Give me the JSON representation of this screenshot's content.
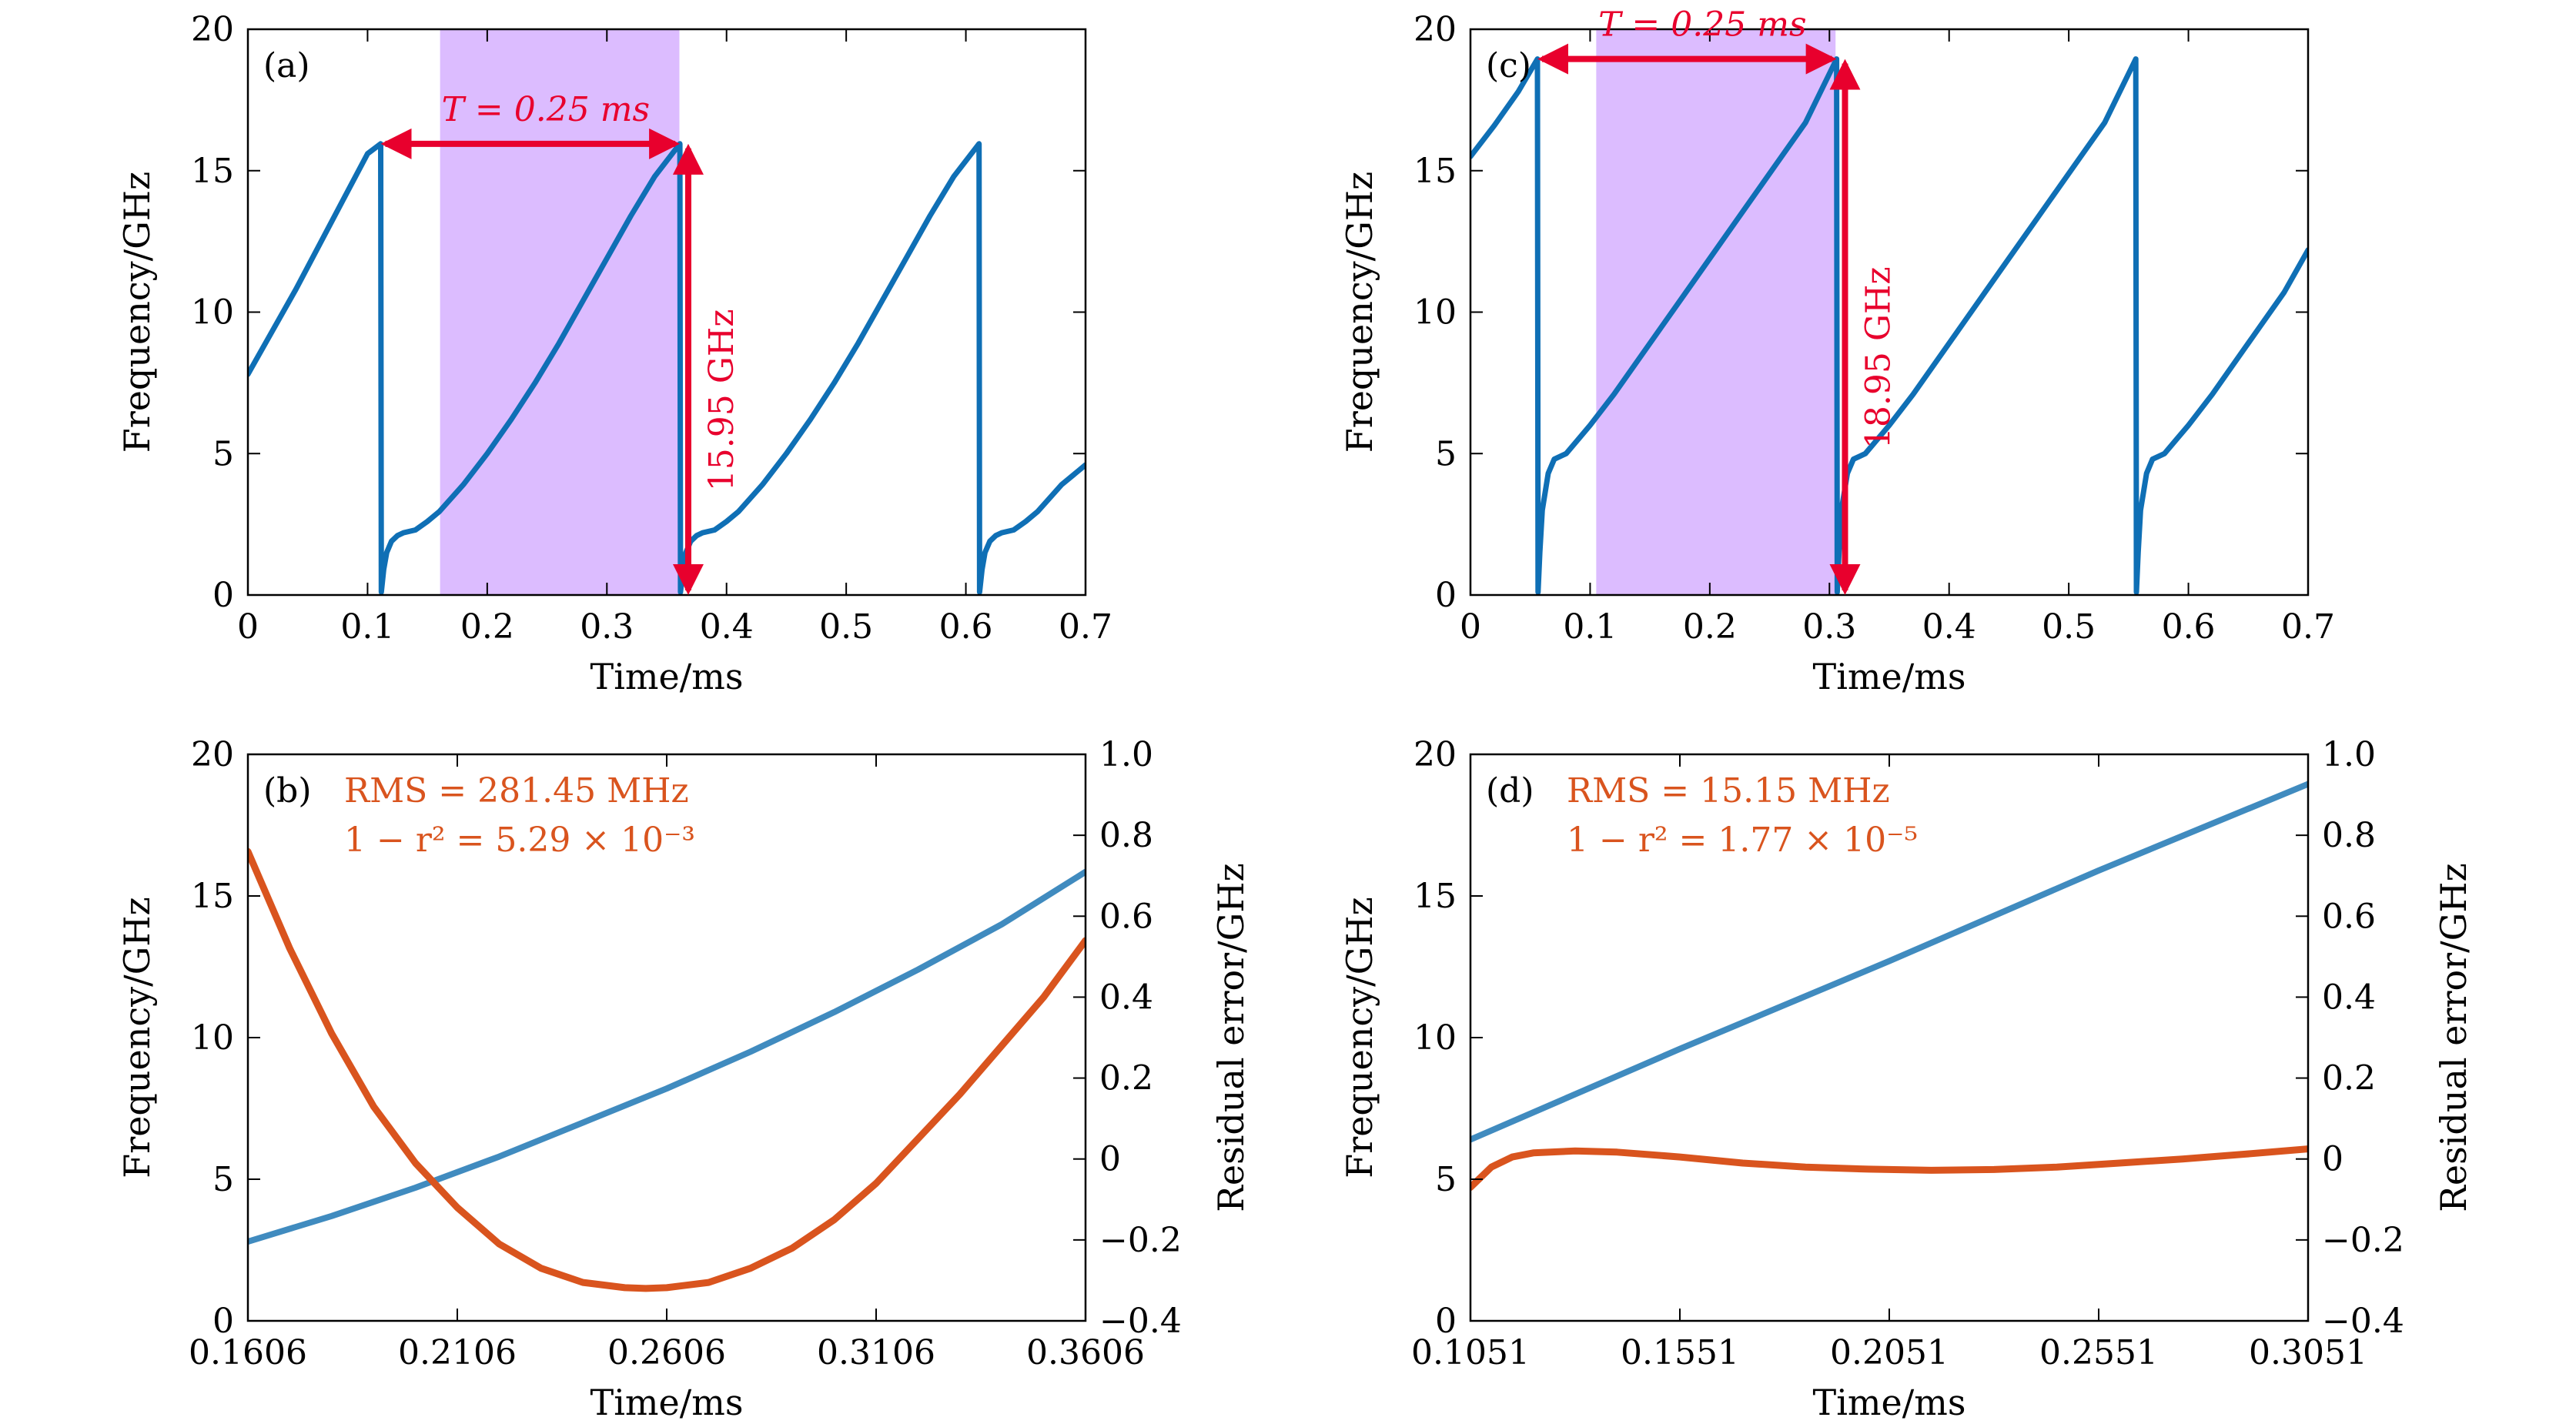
{
  "colors": {
    "frequency": "#1f77b4",
    "frequency_curve": "#0f6fb5",
    "residual": "#d9541e",
    "annotation": "#e8002d",
    "highlight": "#dcbcff"
  },
  "chart_data": [
    {
      "id": "a",
      "type": "line",
      "panel_label": "(a)",
      "xlabel": "Time/ms",
      "ylabel": "Frequency/GHz",
      "xlim": [
        0,
        0.7
      ],
      "ylim": [
        0,
        20
      ],
      "xticks": [
        0,
        0.1,
        0.2,
        0.3,
        0.4,
        0.5,
        0.6,
        0.7
      ],
      "xtick_labels": [
        "0",
        "0.1",
        "0.2",
        "0.3",
        "0.4",
        "0.5",
        "0.6",
        "0.7"
      ],
      "yticks": [
        0,
        5,
        10,
        15,
        20
      ],
      "ytick_labels": [
        "0",
        "5",
        "10",
        "15",
        "20"
      ],
      "series": [
        {
          "name": "Frequency",
          "x": [
            0,
            0.02,
            0.04,
            0.06,
            0.08,
            0.1,
            0.111,
            0.1115,
            0.1135,
            0.116,
            0.12,
            0.125,
            0.13,
            0.14,
            0.15,
            0.16,
            0.18,
            0.2,
            0.22,
            0.24,
            0.26,
            0.28,
            0.3,
            0.32,
            0.34,
            0.361,
            0.3615,
            0.3635,
            0.366,
            0.37,
            0.375,
            0.38,
            0.39,
            0.4,
            0.41,
            0.43,
            0.45,
            0.47,
            0.49,
            0.51,
            0.53,
            0.55,
            0.57,
            0.59,
            0.611,
            0.6115,
            0.6135,
            0.616,
            0.62,
            0.625,
            0.63,
            0.64,
            0.65,
            0.66,
            0.68,
            0.7
          ],
          "y": [
            7.8,
            9.3,
            10.8,
            12.4,
            14.0,
            15.6,
            15.95,
            0.1,
            0.9,
            1.5,
            1.9,
            2.1,
            2.2,
            2.3,
            2.6,
            2.95,
            3.9,
            5.0,
            6.2,
            7.5,
            8.9,
            10.4,
            11.9,
            13.4,
            14.8,
            15.95,
            0.1,
            0.9,
            1.5,
            1.9,
            2.1,
            2.2,
            2.3,
            2.6,
            2.95,
            3.9,
            5.0,
            6.2,
            7.5,
            8.9,
            10.4,
            11.9,
            13.4,
            14.8,
            15.95,
            0.1,
            0.9,
            1.5,
            1.9,
            2.1,
            2.2,
            2.3,
            2.6,
            2.95,
            3.9,
            4.6
          ]
        }
      ],
      "highlight_x": [
        0.1606,
        0.3606
      ],
      "annotations": {
        "period": {
          "label": "T = 0.25 ms",
          "x0": 0.111,
          "x1": 0.361,
          "y": 15.95
        },
        "bandwidth": {
          "label": "15.95 GHz",
          "x": 0.368,
          "y0": 0,
          "y1": 15.95
        }
      }
    },
    {
      "id": "b",
      "type": "line",
      "panel_label": "(b)",
      "xlabel": "Time/ms",
      "ylabel": "Frequency/GHz",
      "ylabel_right": "Residual error/GHz",
      "xlim": [
        0.1606,
        0.3606
      ],
      "ylim": [
        0,
        20
      ],
      "ylim_right": [
        -0.4,
        1.0
      ],
      "xticks": [
        0.1606,
        0.2106,
        0.2606,
        0.3106,
        0.3606
      ],
      "xtick_labels": [
        "0.1606",
        "0.2106",
        "0.2606",
        "0.3106",
        "0.3606"
      ],
      "yticks": [
        0,
        5,
        10,
        15,
        20
      ],
      "ytick_labels": [
        "0",
        "5",
        "10",
        "15",
        "20"
      ],
      "yticks_right": [
        -0.4,
        -0.2,
        0,
        0.2,
        0.4,
        0.6,
        0.8,
        1.0
      ],
      "ytick_labels_right": [
        "−0.4",
        "−0.2",
        "0",
        "0.2",
        "0.4",
        "0.6",
        "0.8",
        "1.0"
      ],
      "stats": {
        "rms": "RMS = 281.45 MHz",
        "fit": "1 − r² = 5.29 × 10⁻³"
      },
      "series": [
        {
          "name": "Frequency",
          "axis": "left",
          "x": [
            0.1606,
            0.1806,
            0.2006,
            0.2206,
            0.2406,
            0.2606,
            0.2806,
            0.3006,
            0.3206,
            0.3406,
            0.3606
          ],
          "y": [
            2.8,
            3.7,
            4.7,
            5.8,
            7.0,
            8.2,
            9.5,
            10.9,
            12.4,
            14.0,
            15.85
          ]
        },
        {
          "name": "Residual error",
          "axis": "right",
          "x": [
            0.1606,
            0.1706,
            0.1806,
            0.1906,
            0.2006,
            0.2106,
            0.2206,
            0.2306,
            0.2406,
            0.2506,
            0.2556,
            0.2606,
            0.2706,
            0.2806,
            0.2906,
            0.3006,
            0.3106,
            0.3206,
            0.3306,
            0.3406,
            0.3506,
            0.3606
          ],
          "y": [
            0.76,
            0.52,
            0.31,
            0.13,
            -0.01,
            -0.12,
            -0.21,
            -0.27,
            -0.305,
            -0.318,
            -0.32,
            -0.318,
            -0.305,
            -0.27,
            -0.22,
            -0.15,
            -0.06,
            0.05,
            0.16,
            0.28,
            0.4,
            0.54
          ]
        }
      ]
    },
    {
      "id": "c",
      "type": "line",
      "panel_label": "(c)",
      "xlabel": "Time/ms",
      "ylabel": "Frequency/GHz",
      "xlim": [
        0,
        0.7
      ],
      "ylim": [
        0,
        20
      ],
      "xticks": [
        0,
        0.1,
        0.2,
        0.3,
        0.4,
        0.5,
        0.6,
        0.7
      ],
      "xtick_labels": [
        "0",
        "0.1",
        "0.2",
        "0.3",
        "0.4",
        "0.5",
        "0.6",
        "0.7"
      ],
      "yticks": [
        0,
        5,
        10,
        15,
        20
      ],
      "ytick_labels": [
        "0",
        "5",
        "10",
        "15",
        "20"
      ],
      "series": [
        {
          "name": "Frequency",
          "x": [
            0,
            0.02,
            0.04,
            0.056,
            0.0565,
            0.058,
            0.06,
            0.065,
            0.07,
            0.08,
            0.09,
            0.1,
            0.12,
            0.14,
            0.16,
            0.18,
            0.2,
            0.22,
            0.24,
            0.26,
            0.28,
            0.306,
            0.3065,
            0.308,
            0.31,
            0.315,
            0.32,
            0.33,
            0.34,
            0.35,
            0.37,
            0.39,
            0.41,
            0.43,
            0.45,
            0.47,
            0.49,
            0.51,
            0.53,
            0.556,
            0.5565,
            0.558,
            0.56,
            0.565,
            0.57,
            0.58,
            0.59,
            0.6,
            0.62,
            0.64,
            0.66,
            0.68,
            0.7
          ],
          "y": [
            15.5,
            16.6,
            17.8,
            18.95,
            0.1,
            1.5,
            3.0,
            4.3,
            4.8,
            5.0,
            5.5,
            6.0,
            7.1,
            8.3,
            9.5,
            10.7,
            11.9,
            13.1,
            14.3,
            15.5,
            16.7,
            18.95,
            0.1,
            1.5,
            3.0,
            4.3,
            4.8,
            5.0,
            5.5,
            6.0,
            7.1,
            8.3,
            9.5,
            10.7,
            11.9,
            13.1,
            14.3,
            15.5,
            16.7,
            18.95,
            0.1,
            1.5,
            3.0,
            4.3,
            4.8,
            5.0,
            5.5,
            6.0,
            7.1,
            8.3,
            9.5,
            10.7,
            12.2
          ]
        }
      ],
      "highlight_x": [
        0.1051,
        0.3051
      ],
      "annotations": {
        "period": {
          "label": "T = 0.25 ms",
          "x0": 0.056,
          "x1": 0.306,
          "y": 18.95
        },
        "bandwidth": {
          "label": "18.95 GHz",
          "x": 0.313,
          "y0": 0,
          "y1": 18.95
        }
      }
    },
    {
      "id": "d",
      "type": "line",
      "panel_label": "(d)",
      "xlabel": "Time/ms",
      "ylabel": "Frequency/GHz",
      "ylabel_right": "Residual error/GHz",
      "xlim": [
        0.1051,
        0.3051
      ],
      "ylim": [
        0,
        20
      ],
      "ylim_right": [
        -0.4,
        1.0
      ],
      "xticks": [
        0.1051,
        0.1551,
        0.2051,
        0.2551,
        0.3051
      ],
      "xtick_labels": [
        "0.1051",
        "0.1551",
        "0.2051",
        "0.2551",
        "0.3051"
      ],
      "yticks": [
        0,
        5,
        10,
        15,
        20
      ],
      "ytick_labels": [
        "0",
        "5",
        "10",
        "15",
        "20"
      ],
      "yticks_right": [
        -0.4,
        -0.2,
        0,
        0.2,
        0.4,
        0.6,
        0.8,
        1.0
      ],
      "ytick_labels_right": [
        "−0.4",
        "−0.2",
        "0",
        "0.2",
        "0.4",
        "0.6",
        "0.8",
        "1.0"
      ],
      "stats": {
        "rms": "RMS = 15.15 MHz",
        "fit": "1 − r² = 1.77 × 10⁻⁵"
      },
      "series": [
        {
          "name": "Frequency",
          "axis": "left",
          "x": [
            0.1051,
            0.1551,
            0.2051,
            0.2551,
            0.3051
          ],
          "y": [
            6.4,
            9.6,
            12.7,
            15.9,
            18.95
          ]
        },
        {
          "name": "Residual error",
          "axis": "right",
          "x": [
            0.1051,
            0.1101,
            0.1151,
            0.1201,
            0.1301,
            0.1401,
            0.1551,
            0.1701,
            0.1851,
            0.2001,
            0.2151,
            0.2301,
            0.2451,
            0.2601,
            0.2751,
            0.2901,
            0.3051
          ],
          "y": [
            -0.07,
            -0.02,
            0.005,
            0.015,
            0.02,
            0.017,
            0.005,
            -0.01,
            -0.02,
            -0.025,
            -0.028,
            -0.026,
            -0.02,
            -0.01,
            0.0,
            0.012,
            0.025
          ]
        }
      ]
    }
  ]
}
